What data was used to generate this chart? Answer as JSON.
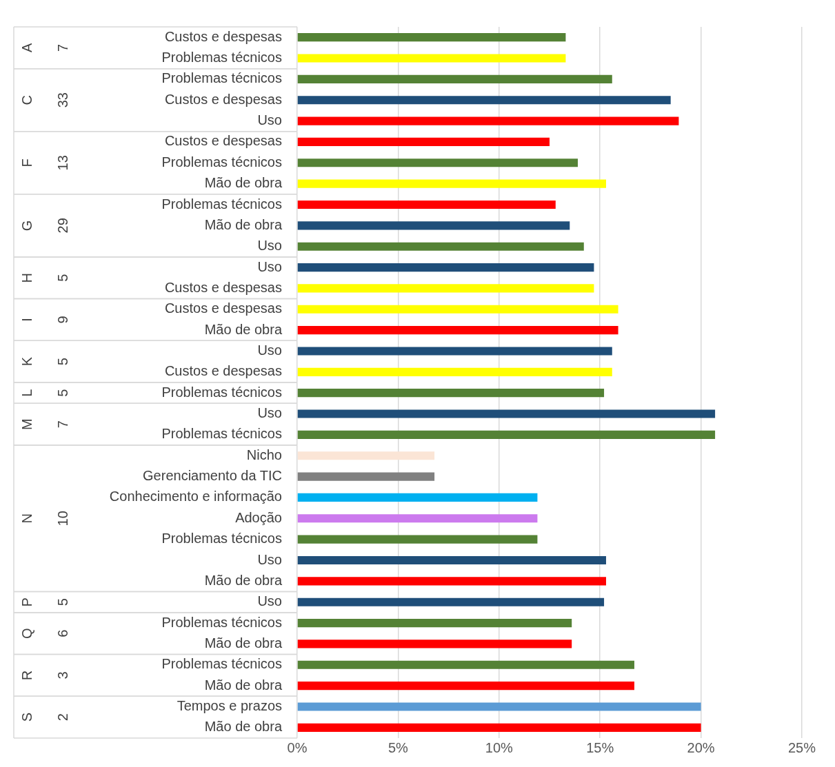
{
  "chart_data": {
    "type": "bar",
    "orientation": "horizontal",
    "categories": [
      "Custos e despesas",
      "Problemas técnicos",
      "Problemas técnicos",
      "Custos e despesas",
      "Uso",
      "Custos e despesas",
      "Problemas técnicos",
      "Mão de obra",
      "Problemas técnicos",
      "Mão de obra",
      "Uso",
      "Uso",
      "Custos e despesas",
      "Custos e despesas",
      "Mão de obra",
      "Uso",
      "Custos e despesas",
      "Problemas técnicos",
      "Uso",
      "Problemas técnicos",
      "Nicho",
      "Gerenciamento da TIC",
      "Conhecimento e informação",
      "Adoção",
      "Problemas técnicos",
      "Uso",
      "Mão de obra",
      "Uso",
      "Problemas técnicos",
      "Mão de obra",
      "Problemas técnicos",
      "Mão de obra",
      "Tempos e prazos",
      "Mão de obra"
    ],
    "values": [
      13.3,
      13.3,
      15.6,
      18.5,
      18.9,
      12.5,
      13.9,
      15.3,
      12.8,
      13.5,
      14.2,
      14.7,
      14.7,
      15.9,
      15.9,
      15.6,
      15.6,
      15.2,
      20.7,
      20.7,
      6.8,
      6.8,
      11.9,
      11.9,
      11.9,
      15.3,
      15.3,
      15.2,
      13.6,
      13.6,
      16.7,
      16.7,
      20.0,
      20.0
    ],
    "colors": [
      "#548235",
      "#ffff00",
      "#548235",
      "#1f4e79",
      "#ff0000",
      "#ff0000",
      "#548235",
      "#ffff00",
      "#ff0000",
      "#1f4e79",
      "#548235",
      "#1f4e79",
      "#ffff00",
      "#ffff00",
      "#ff0000",
      "#1f4e79",
      "#ffff00",
      "#548235",
      "#1f4e79",
      "#548235",
      "#fbe5d6",
      "#808080",
      "#00b0f0",
      "#cc7aee",
      "#548235",
      "#1f4e79",
      "#ff0000",
      "#1f4e79",
      "#548235",
      "#ff0000",
      "#548235",
      "#ff0000",
      "#5b9bd5",
      "#ff0000"
    ],
    "xlim": [
      0,
      25
    ],
    "xticks": [
      {
        "value": 0,
        "label": "0%"
      },
      {
        "value": 5,
        "label": "5%"
      },
      {
        "value": 10,
        "label": "10%"
      },
      {
        "value": 15,
        "label": "15%"
      },
      {
        "value": 20,
        "label": "20%"
      },
      {
        "value": 25,
        "label": "25%"
      }
    ],
    "grid": "x",
    "legend": false,
    "annotations": [
      "A",
      "7",
      "C",
      "33",
      "F",
      "13",
      "G",
      "29",
      "H",
      "5",
      "I",
      "9",
      "K",
      "5",
      "L",
      "5",
      "M",
      "7",
      "N",
      "10",
      "P",
      "5",
      "Q",
      "6",
      "R",
      "3",
      "S",
      "2"
    ]
  }
}
